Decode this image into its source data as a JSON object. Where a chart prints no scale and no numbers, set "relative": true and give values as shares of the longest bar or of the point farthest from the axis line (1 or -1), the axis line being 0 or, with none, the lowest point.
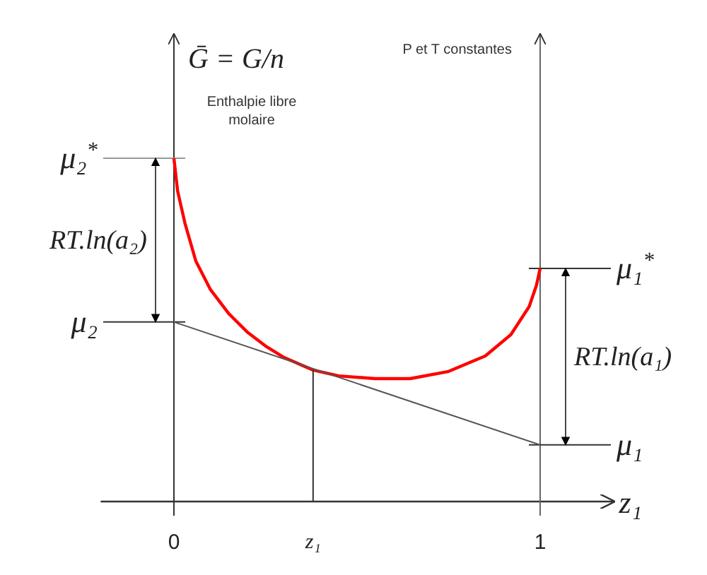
{
  "chart_data": {
    "type": "line",
    "relative": true,
    "ylabel": "Ḡ = G/n",
    "xlabel": "z₁",
    "x": [
      0,
      0.01,
      0.03,
      0.06,
      0.1,
      0.15,
      0.2,
      0.25,
      0.3,
      0.38,
      0.45,
      0.55,
      0.645,
      0.75,
      0.85,
      0.92,
      0.97,
      0.99,
      1
    ],
    "xlim": [
      -0.2,
      1.2
    ],
    "xticks": [
      0,
      {
        "value": 0.38,
        "label": "z₁"
      },
      1
    ],
    "series": [
      {
        "color": "#ff0000",
        "values": [
          1,
          0.905,
          0.811,
          0.7,
          0.617,
          0.547,
          0.494,
          0.453,
          0.42,
          0.383,
          0.366,
          0.358,
          0.358,
          0.379,
          0.424,
          0.486,
          0.568,
          0.63,
          0.679
        ]
      },
      {
        "color": "#555555",
        "x": [
          0,
          1
        ],
        "values": [
          0.523,
          0.165
        ]
      },
      {
        "color": "#333333",
        "x": [
          0.38,
          0.38
        ],
        "values": [
          0,
          0.383
        ]
      }
    ],
    "ref_lines": [
      {
        "axis": "y",
        "value": 1,
        "label": "μ₂$^{*}$",
        "color": "#999999"
      },
      {
        "axis": "y",
        "value": 0.523,
        "label": "μ₂",
        "color": "#333333"
      },
      {
        "axis": "y",
        "value": 0.679,
        "label": "μ₁$^{*}$",
        "color": "#333333"
      },
      {
        "axis": "y",
        "value": 0.165,
        "label": "μ₁",
        "color": "#333333"
      },
      {
        "axis": "x",
        "value": 1,
        "color": "#666666"
      }
    ],
    "annotations": [
      "Enthalpie libre molaire",
      "P et T constantes",
      "RT.ln(a₂)",
      "RT.ln(a₁)"
    ]
  }
}
